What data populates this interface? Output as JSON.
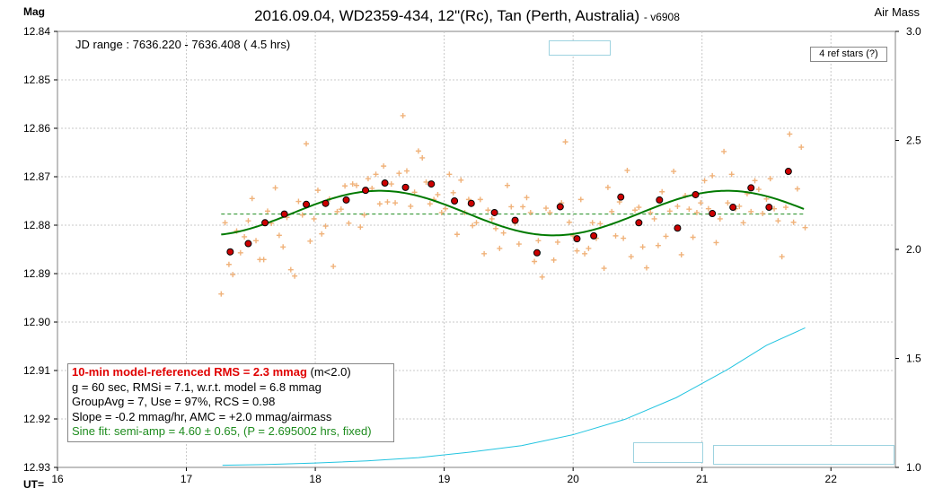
{
  "header": {
    "title": "2016.09.04, WD2359-434, 12\"(Rc), Tan (Perth, Australia)",
    "version": "- v6908",
    "ylabel": "Mag",
    "y2label": "Air Mass",
    "xlabel": "UT="
  },
  "info": {
    "jd_range": "JD range : 7636.220 - 7636.408  ( 4.5 hrs)",
    "ref_stars": "4 ref stars (?)"
  },
  "stats": {
    "rms": "10-min model-referenced RMS = 2.3 mmag",
    "rms_cond": " (m<2.0)",
    "line2": "g = 60 sec, RMSi = 7.1, w.r.t. model = 6.8 mmag",
    "line3": "GroupAvg = 7, Use = 97%, RCS = 0.98",
    "line4": "Slope = -0.2 mmag/hr, AMC = +2.0 mmag/airmass",
    "line5": "Sine fit:  semi-amp = 4.60 ± 0.65, (P = 2.695002 hrs, fixed)"
  },
  "colors": {
    "raw": "#f0b27a",
    "avg_fill": "#cc0000",
    "sine": "#007a00",
    "mean": "#1e8c1e",
    "airmass": "#22c4e0",
    "grid": "#c8c8c8"
  },
  "chart_data": {
    "type": "scatter",
    "xlim": [
      16,
      22.5
    ],
    "ylim": [
      12.84,
      12.93
    ],
    "y_inverted": true,
    "y2lim": [
      1.0,
      3.0
    ],
    "x_ticks": [
      16,
      17,
      18,
      19,
      20,
      21,
      22
    ],
    "y_ticks": [
      12.84,
      12.85,
      12.86,
      12.87,
      12.88,
      12.89,
      12.9,
      12.91,
      12.92,
      12.93
    ],
    "y2_ticks": [
      1.0,
      1.5,
      2.0,
      2.5,
      3.0
    ],
    "grid": true,
    "mean_mag": 12.8777,
    "sine_fit": {
      "mean": 12.8775,
      "semi_amp": 0.0046,
      "period_hrs": 2.695002,
      "peak_bright_x": 18.5
    },
    "group_averages": {
      "x": [
        17.34,
        17.48,
        17.61,
        17.76,
        17.93,
        18.08,
        18.24,
        18.39,
        18.54,
        18.7,
        18.9,
        19.08,
        19.21,
        19.39,
        19.55,
        19.72,
        19.9,
        20.03,
        20.16,
        20.37,
        20.51,
        20.67,
        20.81,
        20.95,
        21.08,
        21.24,
        21.38,
        21.52,
        21.67
      ],
      "y": [
        12.8855,
        12.8838,
        12.8795,
        12.8777,
        12.8757,
        12.8755,
        12.8748,
        12.8728,
        12.8713,
        12.8722,
        12.8715,
        12.875,
        12.8755,
        12.8774,
        12.879,
        12.8857,
        12.8762,
        12.8828,
        12.8822,
        12.8742,
        12.8795,
        12.8748,
        12.8806,
        12.8737,
        12.8776,
        12.8763,
        12.8723,
        12.8763,
        12.8689
      ]
    },
    "raw": {
      "x": [
        17.27,
        17.3,
        17.33,
        17.36,
        17.39,
        17.42,
        17.45,
        17.48,
        17.51,
        17.54,
        17.57,
        17.6,
        17.63,
        17.66,
        17.69,
        17.72,
        17.75,
        17.78,
        17.81,
        17.84,
        17.87,
        17.9,
        17.93,
        17.96,
        17.99,
        18.02,
        18.05,
        18.08,
        18.11,
        18.14,
        18.17,
        18.2,
        18.23,
        18.26,
        18.29,
        18.32,
        18.35,
        18.38,
        18.41,
        18.44,
        18.47,
        18.5,
        18.53,
        18.56,
        18.59,
        18.62,
        18.65,
        18.68,
        18.71,
        18.74,
        18.77,
        18.8,
        18.83,
        18.86,
        18.89,
        18.92,
        18.95,
        18.98,
        19.01,
        19.04,
        19.07,
        19.1,
        19.13,
        19.16,
        19.19,
        19.22,
        19.25,
        19.28,
        19.31,
        19.34,
        19.37,
        19.4,
        19.43,
        19.46,
        19.49,
        19.52,
        19.55,
        19.58,
        19.61,
        19.64,
        19.67,
        19.7,
        19.73,
        19.76,
        19.79,
        19.82,
        19.85,
        19.88,
        19.91,
        19.94,
        19.97,
        20.0,
        20.03,
        20.06,
        20.09,
        20.12,
        20.15,
        20.18,
        20.21,
        20.24,
        20.27,
        20.3,
        20.33,
        20.36,
        20.39,
        20.42,
        20.45,
        20.48,
        20.51,
        20.54,
        20.57,
        20.6,
        20.63,
        20.66,
        20.69,
        20.72,
        20.75,
        20.78,
        20.81,
        20.84,
        20.87,
        20.9,
        20.93,
        20.96,
        20.99,
        21.02,
        21.05,
        21.08,
        21.11,
        21.14,
        21.17,
        21.2,
        21.23,
        21.26,
        21.29,
        21.32,
        21.35,
        21.38,
        21.41,
        21.44,
        21.47,
        21.5,
        21.53,
        21.56,
        21.59,
        21.62,
        21.65,
        21.68,
        21.71,
        21.74,
        21.77,
        21.8
      ],
      "y": [
        12.8942,
        12.8795,
        12.8881,
        12.8902,
        12.8812,
        12.8857,
        12.8824,
        12.8791,
        12.8745,
        12.8832,
        12.8871,
        12.8871,
        12.8771,
        12.8796,
        12.8723,
        12.8821,
        12.8845,
        12.8784,
        12.8892,
        12.8905,
        12.8751,
        12.8779,
        12.8632,
        12.8833,
        12.8787,
        12.8728,
        12.8818,
        12.8802,
        12.8746,
        12.8885,
        12.8772,
        12.8767,
        12.8719,
        12.8796,
        12.8715,
        12.8718,
        12.8804,
        12.8779,
        12.8704,
        12.8724,
        12.8695,
        12.8756,
        12.8678,
        12.8752,
        12.8715,
        12.8754,
        12.8693,
        12.8574,
        12.8688,
        12.8761,
        12.8732,
        12.8647,
        12.8661,
        12.8711,
        12.8756,
        12.8747,
        12.8737,
        12.8774,
        12.8766,
        12.8695,
        12.8733,
        12.8819,
        12.8707,
        12.8774,
        12.8747,
        12.8801,
        12.8795,
        12.8747,
        12.8859,
        12.8769,
        12.8787,
        12.8807,
        12.8848,
        12.8816,
        12.8718,
        12.8762,
        12.8796,
        12.8839,
        12.8762,
        12.8743,
        12.8774,
        12.8875,
        12.8832,
        12.8907,
        12.8765,
        12.8774,
        12.8872,
        12.8835,
        12.8754,
        12.8628,
        12.8794,
        12.8822,
        12.8853,
        12.8747,
        12.8859,
        12.8848,
        12.8795,
        12.8827,
        12.8797,
        12.8889,
        12.8722,
        12.8772,
        12.8822,
        12.8752,
        12.8827,
        12.8687,
        12.8865,
        12.8769,
        12.8763,
        12.8845,
        12.8888,
        12.8774,
        12.8787,
        12.8842,
        12.8731,
        12.8823,
        12.8771,
        12.8689,
        12.8761,
        12.8861,
        12.8739,
        12.8767,
        12.8825,
        12.8774,
        12.8754,
        12.8708,
        12.8766,
        12.8698,
        12.8836,
        12.8787,
        12.8648,
        12.8754,
        12.8695,
        12.8766,
        12.8761,
        12.8795,
        12.8735,
        12.8772,
        12.8708,
        12.8726,
        12.8776,
        12.8746,
        12.8704,
        12.8766,
        12.8791,
        12.8865,
        12.8763,
        12.8612,
        12.8794,
        12.8725,
        12.8639,
        12.8805
      ]
    },
    "airmass": {
      "x": [
        17.28,
        17.6,
        18.0,
        18.4,
        18.8,
        19.2,
        19.6,
        20.0,
        20.4,
        20.8,
        21.2,
        21.5,
        21.8
      ],
      "y": [
        1.01,
        1.013,
        1.02,
        1.03,
        1.045,
        1.07,
        1.1,
        1.15,
        1.22,
        1.32,
        1.45,
        1.56,
        1.64
      ]
    }
  }
}
